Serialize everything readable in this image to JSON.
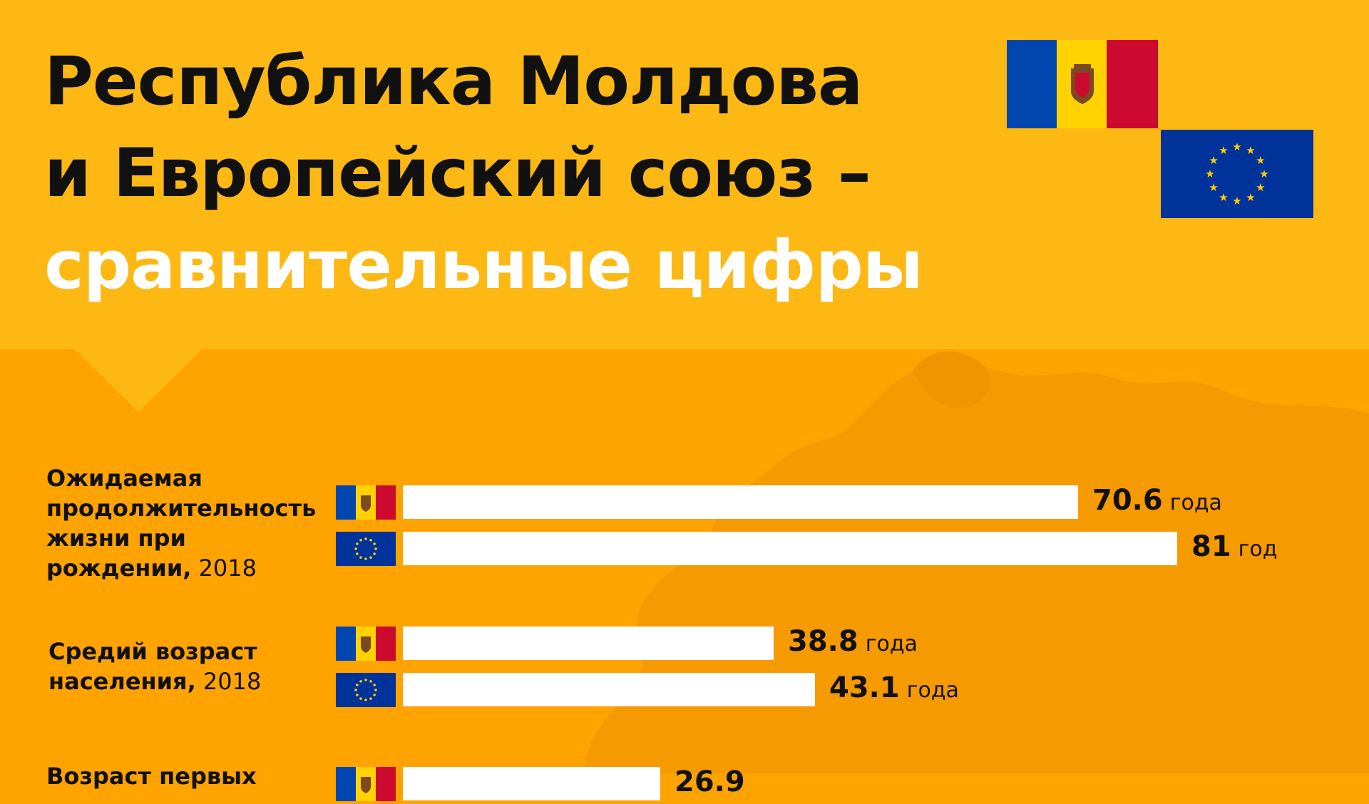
{
  "title": {
    "line1": "Республика Молдова",
    "line2": "и Европейский союз –",
    "line3": "сравнительные цифры"
  },
  "colors": {
    "header_bg": "#FDB813",
    "body_bg": "#FFA300",
    "bar": "#FFFFFF",
    "moldova_blue": "#0046AE",
    "moldova_yellow": "#FFD200",
    "moldova_red": "#CC092F",
    "eu_blue": "#003399",
    "eu_star": "#FFCC00"
  },
  "icons": {
    "moldova": "moldova-flag-icon",
    "eu": "eu-flag-icon"
  },
  "chart_data": {
    "type": "bar",
    "orientation": "horizontal",
    "series": [
      {
        "name": "Республика Молдова",
        "flag": "moldova"
      },
      {
        "name": "Европейский союз",
        "flag": "eu"
      }
    ],
    "scale_max": 81,
    "metrics": [
      {
        "label": "Ожидаемая продолжительность жизни при рождении,",
        "year": "2018",
        "bars": [
          {
            "flag": "moldova",
            "value": 70.6,
            "display": "70.6",
            "unit": "года"
          },
          {
            "flag": "eu",
            "value": 81,
            "display": "81",
            "unit": "год"
          }
        ]
      },
      {
        "label": "Средий возраст населения,",
        "year": "2018",
        "bars": [
          {
            "flag": "moldova",
            "value": 38.8,
            "display": "38.8",
            "unit": "года"
          },
          {
            "flag": "eu",
            "value": 43.1,
            "display": "43.1",
            "unit": "года"
          }
        ]
      },
      {
        "label": "Возраст первых",
        "year": "",
        "bars": [
          {
            "flag": "moldova",
            "value": 26.9,
            "display": "26.9",
            "unit": ""
          }
        ]
      }
    ]
  }
}
